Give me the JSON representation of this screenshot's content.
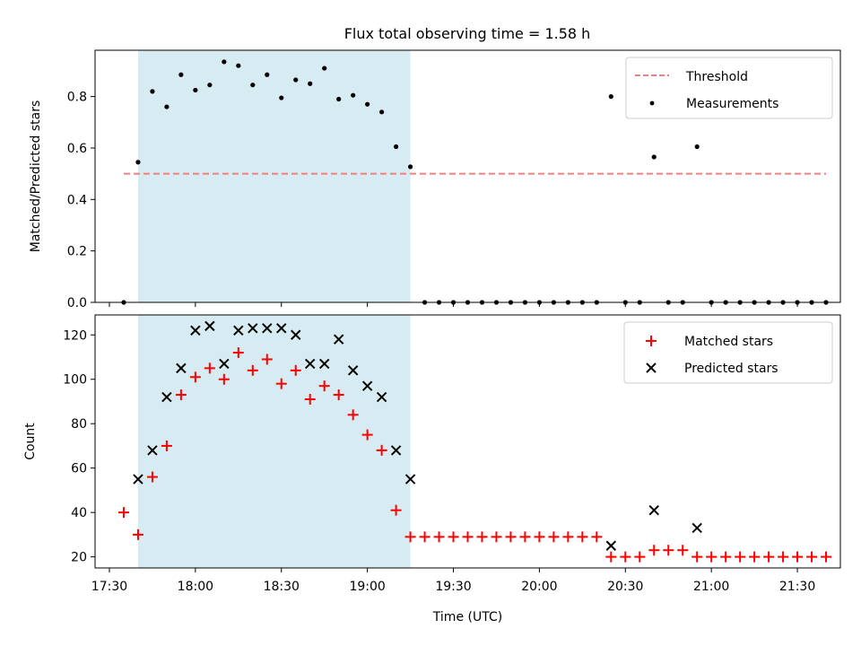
{
  "title": "Flux total observing time = 1.58 h",
  "colors": {
    "threshold": "#f08080",
    "measurement": "#000000",
    "matched": "#ff0000",
    "predicted": "#000000",
    "span": "#add8e6"
  },
  "chart_data": [
    {
      "type": "scatter",
      "panel": "top",
      "xlabel": "",
      "ylabel": "Matched/Predicted stars",
      "xlim": [
        "17:25",
        "21:45"
      ],
      "ylim": [
        0,
        0.98
      ],
      "yticks": [
        0.0,
        0.2,
        0.4,
        0.6,
        0.8
      ],
      "ytick_labels": [
        "0.0",
        "0.2",
        "0.4",
        "0.6",
        "0.8"
      ],
      "shaded_span": [
        "17:40",
        "19:15"
      ],
      "legend": {
        "position": "top-right",
        "entries": [
          "Threshold",
          "Measurements"
        ]
      },
      "series": [
        {
          "name": "Threshold",
          "kind": "dashed-line",
          "x": [
            "17:35",
            "21:40"
          ],
          "y": [
            0.5,
            0.5
          ]
        },
        {
          "name": "Measurements",
          "kind": "points",
          "x": [
            "17:35",
            "17:40",
            "17:45",
            "17:50",
            "17:55",
            "18:00",
            "18:05",
            "18:10",
            "18:15",
            "18:20",
            "18:25",
            "18:30",
            "18:35",
            "18:40",
            "18:45",
            "18:50",
            "18:55",
            "19:00",
            "19:05",
            "19:10",
            "19:15",
            "19:20",
            "19:25",
            "19:30",
            "19:35",
            "19:40",
            "19:45",
            "19:50",
            "19:55",
            "20:00",
            "20:05",
            "20:10",
            "20:15",
            "20:20",
            "20:25",
            "20:30",
            "20:35",
            "20:40",
            "20:45",
            "20:50",
            "20:55",
            "21:00",
            "21:05",
            "21:10",
            "21:15",
            "21:20",
            "21:25",
            "21:30",
            "21:35",
            "21:40"
          ],
          "y": [
            0,
            0.545,
            0.82,
            0.76,
            0.885,
            0.825,
            0.845,
            0.935,
            0.92,
            0.845,
            0.885,
            0.795,
            0.865,
            0.85,
            0.91,
            0.79,
            0.805,
            0.77,
            0.74,
            0.605,
            0.527,
            0,
            0,
            0,
            0,
            0,
            0,
            0,
            0,
            0,
            0,
            0,
            0,
            0,
            0.8,
            0,
            0,
            0.565,
            0,
            0,
            0.605,
            0,
            0,
            0,
            0,
            0,
            0,
            0,
            0,
            0
          ]
        }
      ]
    },
    {
      "type": "scatter",
      "panel": "bottom",
      "xlabel": "Time (UTC)",
      "ylabel": "Count",
      "xlim": [
        "17:25",
        "21:45"
      ],
      "ylim": [
        15,
        129
      ],
      "yticks": [
        20,
        40,
        60,
        80,
        100,
        120
      ],
      "xticks": [
        "17:30",
        "18:00",
        "18:30",
        "19:00",
        "19:30",
        "20:00",
        "20:30",
        "21:00",
        "21:30"
      ],
      "shaded_span": [
        "17:40",
        "19:15"
      ],
      "legend": {
        "position": "top-right",
        "entries": [
          "Matched stars",
          "Predicted stars"
        ]
      },
      "series": [
        {
          "name": "Matched stars",
          "marker": "plus",
          "x": [
            "17:35",
            "17:40",
            "17:45",
            "17:50",
            "17:55",
            "18:00",
            "18:05",
            "18:10",
            "18:15",
            "18:20",
            "18:25",
            "18:30",
            "18:35",
            "18:40",
            "18:45",
            "18:50",
            "18:55",
            "19:00",
            "19:05",
            "19:10",
            "19:15",
            "19:20",
            "19:25",
            "19:30",
            "19:35",
            "19:40",
            "19:45",
            "19:50",
            "19:55",
            "20:00",
            "20:05",
            "20:10",
            "20:15",
            "20:20",
            "20:25",
            "20:30",
            "20:35",
            "20:40",
            "20:45",
            "20:50",
            "20:55",
            "21:00",
            "21:05",
            "21:10",
            "21:15",
            "21:20",
            "21:25",
            "21:30",
            "21:35",
            "21:40"
          ],
          "y": [
            40,
            30,
            56,
            70,
            93,
            101,
            105,
            100,
            112,
            104,
            109,
            98,
            104,
            91,
            97,
            93,
            84,
            75,
            68,
            41,
            29,
            29,
            29,
            29,
            29,
            29,
            29,
            29,
            29,
            29,
            29,
            29,
            29,
            29,
            20,
            20,
            20,
            23,
            23,
            23,
            20,
            20,
            20,
            20,
            20,
            20,
            20,
            20,
            20,
            20
          ]
        },
        {
          "name": "Predicted stars",
          "marker": "x",
          "x": [
            "17:40",
            "17:45",
            "17:50",
            "17:55",
            "18:00",
            "18:05",
            "18:10",
            "18:15",
            "18:20",
            "18:25",
            "18:30",
            "18:35",
            "18:40",
            "18:45",
            "18:50",
            "18:55",
            "19:00",
            "19:05",
            "19:10",
            "19:15",
            "20:25",
            "20:40",
            "20:55"
          ],
          "y": [
            55,
            68,
            92,
            105,
            122,
            124,
            107,
            122,
            123,
            123,
            123,
            120,
            107,
            107,
            118,
            104,
            97,
            92,
            68,
            55,
            25,
            41,
            33
          ]
        }
      ]
    }
  ]
}
